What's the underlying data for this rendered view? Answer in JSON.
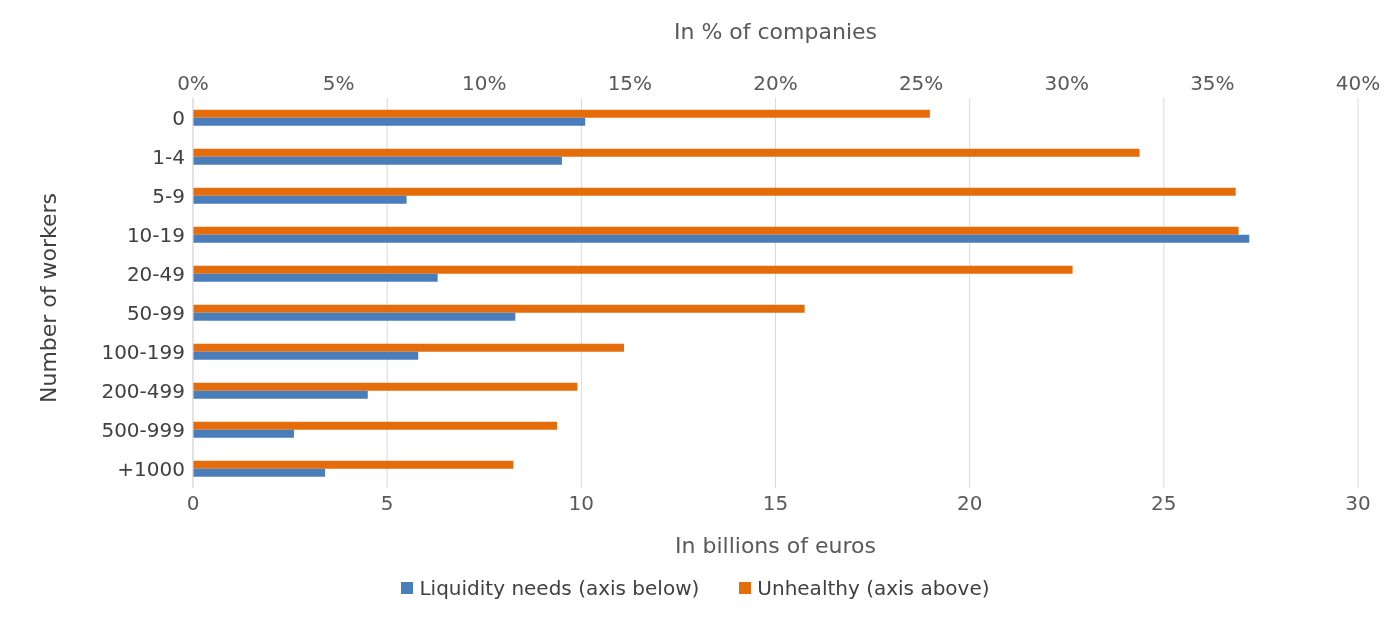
{
  "chart_data": {
    "type": "bar",
    "orientation": "horizontal",
    "xlabel": "In billions of euros",
    "x2label": "In % of companies",
    "ylabel": "Number of workers",
    "categories": [
      "0",
      "1-4",
      "5-9",
      "10-19",
      "20-49",
      "50-99",
      "100-199",
      "200-499",
      "500-999",
      "+1000"
    ],
    "series": [
      {
        "name": "Liquidity needs (axis below)",
        "color": "#4a7ebb",
        "values": [
          10.1,
          9.5,
          5.5,
          27.2,
          6.3,
          8.3,
          5.8,
          4.5,
          2.6,
          3.4
        ]
      },
      {
        "name": "Unhealthy (axis above)",
        "color": "#e46c0a",
        "axis": "x2",
        "values": [
          25.3,
          32.5,
          35.8,
          35.9,
          30.2,
          21.0,
          14.8,
          13.2,
          12.5,
          11.0
        ]
      }
    ],
    "xlim": [
      0,
      30
    ],
    "xticks": [
      0,
      5,
      10,
      15,
      20,
      25,
      30
    ],
    "x2lim": [
      0,
      40
    ],
    "x2ticks": [
      {
        "value": 0,
        "label": "0%"
      },
      {
        "value": 5,
        "label": "5%"
      },
      {
        "value": 10,
        "label": "10%"
      },
      {
        "value": 15,
        "label": "15%"
      },
      {
        "value": 20,
        "label": "20%"
      },
      {
        "value": 25,
        "label": "25%"
      },
      {
        "value": 30,
        "label": "30%"
      },
      {
        "value": 35,
        "label": "35%"
      },
      {
        "value": 40,
        "label": "40%"
      }
    ],
    "grid": "x",
    "legend": "bottom"
  }
}
